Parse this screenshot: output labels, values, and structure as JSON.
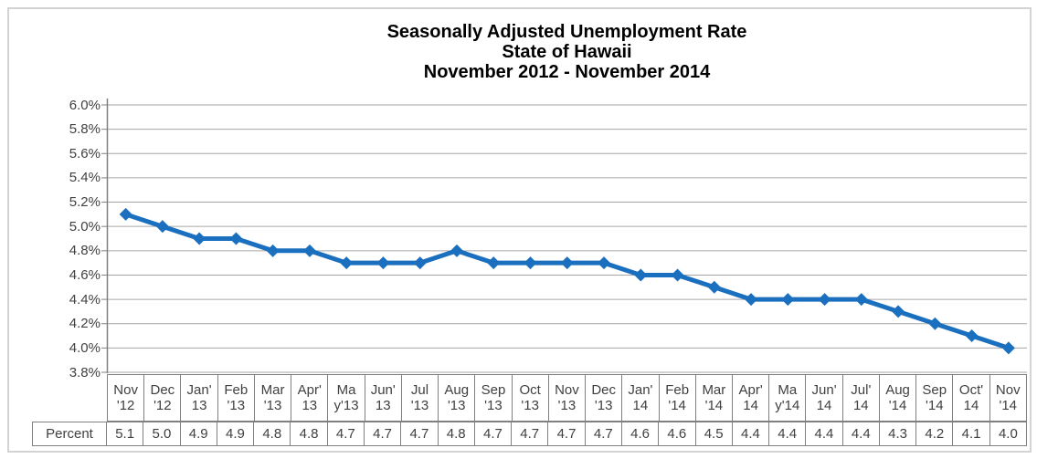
{
  "title": {
    "line1": "Seasonally Adjusted Unemployment Rate",
    "line2": "State of Hawaii",
    "line3": "November 2012 - November 2014"
  },
  "y_axis": {
    "tick_labels": [
      "6.0%",
      "5.8%",
      "5.6%",
      "5.4%",
      "5.2%",
      "5.0%",
      "4.8%",
      "4.6%",
      "4.4%",
      "4.2%",
      "4.0%",
      "3.8%"
    ]
  },
  "table": {
    "row_label": "Percent",
    "month_labels": [
      [
        "Nov",
        "'12"
      ],
      [
        "Dec",
        "'12"
      ],
      [
        "Jan'",
        "13"
      ],
      [
        "Feb",
        "'13"
      ],
      [
        "Mar",
        "'13"
      ],
      [
        "Apr'",
        "13"
      ],
      [
        "Ma",
        "y'13"
      ],
      [
        "Jun'",
        "13"
      ],
      [
        "Jul",
        "'13"
      ],
      [
        "Aug",
        "'13"
      ],
      [
        "Sep",
        "'13"
      ],
      [
        "Oct",
        "'13"
      ],
      [
        "Nov",
        "'13"
      ],
      [
        "Dec",
        "'13"
      ],
      [
        "Jan'",
        "14"
      ],
      [
        "Feb",
        "'14"
      ],
      [
        "Mar",
        "'14"
      ],
      [
        "Apr'",
        "14"
      ],
      [
        "Ma",
        "y'14"
      ],
      [
        "Jun'",
        "14"
      ],
      [
        "Jul'",
        "14"
      ],
      [
        "Aug",
        "'14"
      ],
      [
        "Sep",
        "'14"
      ],
      [
        "Oct'",
        "14"
      ],
      [
        "Nov",
        "'14"
      ]
    ],
    "values": [
      "5.1",
      "5.0",
      "4.9",
      "4.9",
      "4.8",
      "4.8",
      "4.7",
      "4.7",
      "4.7",
      "4.8",
      "4.7",
      "4.7",
      "4.7",
      "4.7",
      "4.6",
      "4.6",
      "4.5",
      "4.4",
      "4.4",
      "4.4",
      "4.4",
      "4.3",
      "4.2",
      "4.1",
      "4.0"
    ]
  },
  "chart_data": {
    "type": "line",
    "title": "Seasonally Adjusted Unemployment Rate, State of Hawaii, November 2012 - November 2014",
    "categories": [
      "Nov '12",
      "Dec '12",
      "Jan' 13",
      "Feb '13",
      "Mar '13",
      "Apr' 13",
      "May'13",
      "Jun' 13",
      "Jul '13",
      "Aug '13",
      "Sep '13",
      "Oct '13",
      "Nov '13",
      "Dec '13",
      "Jan' 14",
      "Feb '14",
      "Mar '14",
      "Apr' 14",
      "May'14",
      "Jun' 14",
      "Jul' 14",
      "Aug '14",
      "Sep '14",
      "Oct' 14",
      "Nov '14"
    ],
    "series": [
      {
        "name": "Percent",
        "values": [
          5.1,
          5.0,
          4.9,
          4.9,
          4.8,
          4.8,
          4.7,
          4.7,
          4.7,
          4.8,
          4.7,
          4.7,
          4.7,
          4.7,
          4.6,
          4.6,
          4.5,
          4.4,
          4.4,
          4.4,
          4.4,
          4.3,
          4.2,
          4.1,
          4.0
        ]
      }
    ],
    "xlabel": "",
    "ylabel": "",
    "ylim": [
      3.8,
      6.0
    ],
    "ytick_step": 0.2,
    "ytick_format": "percent",
    "grid": true,
    "legend_position": "none",
    "marker": "diamond"
  },
  "colors": {
    "line": "#1B6FBF",
    "grid": "#A6A6A6",
    "axis": "#808080",
    "table_border": "#808080",
    "text": "#404040",
    "title": "#000000",
    "frame_border": "#D3D3D3",
    "background": "#FFFFFF"
  }
}
